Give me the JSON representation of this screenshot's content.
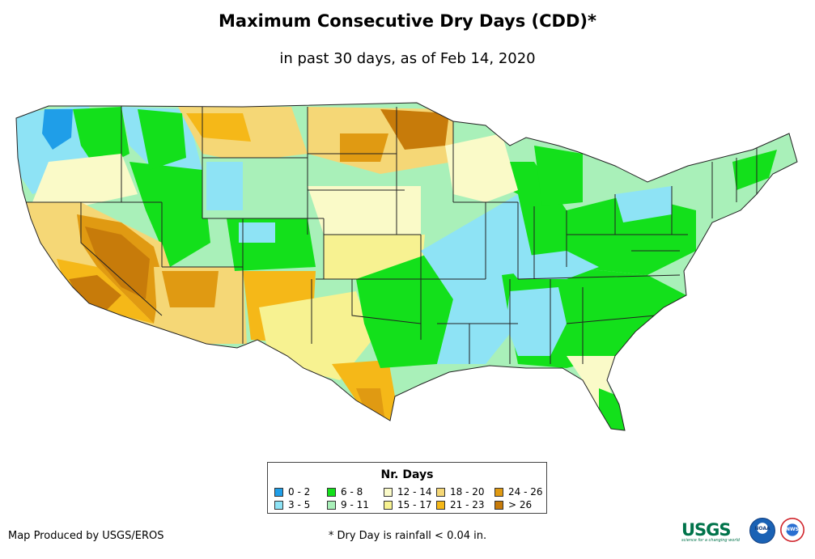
{
  "title": "Maximum Consecutive Dry Days (CDD)*",
  "subtitle": "in past 30 days, as of Feb 14, 2020",
  "legend": {
    "title": "Nr. Days",
    "items": [
      {
        "label": "0 - 2",
        "color": "#1f9ee8"
      },
      {
        "label": "3 - 5",
        "color": "#8ee3f5"
      },
      {
        "label": "6 - 8",
        "color": "#13e01b"
      },
      {
        "label": "9 - 11",
        "color": "#a9f0b9"
      },
      {
        "label": "12 - 14",
        "color": "#fafac8"
      },
      {
        "label": "15 - 17",
        "color": "#f7f291"
      },
      {
        "label": "18 - 20",
        "color": "#f5d776"
      },
      {
        "label": "21 - 23",
        "color": "#f5b818"
      },
      {
        "label": "24 - 26",
        "color": "#e09a12"
      },
      {
        "label": "> 26",
        "color": "#c77b0a"
      }
    ]
  },
  "footer": {
    "credit": "Map Produced by USGS/EROS",
    "footnote": "* Dry Day is rainfall < 0.04 in."
  },
  "logos": {
    "usgs": "USGS",
    "usgs_tagline": "science for a changing world",
    "noaa": "NOAA",
    "nws": "NWS"
  }
}
